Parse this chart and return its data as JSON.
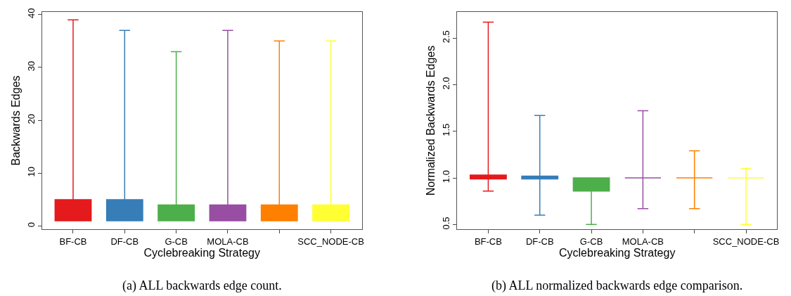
{
  "chart_data": [
    {
      "type": "box",
      "xlabel": "Cyclebreaking Strategy",
      "ylabel": "Backwards Edges",
      "categories": [
        "BF-CB",
        "DF-CB",
        "G-CB",
        "MOLA-CB",
        null,
        "SCC_NODE-CB"
      ],
      "colors": [
        "#e41a1c",
        "#377eb8",
        "#4daf4a",
        "#984ea3",
        "#ff7f00",
        "#ffff33"
      ],
      "boxes": [
        {
          "low": 1,
          "q1": 1,
          "median": 2,
          "q3": 5,
          "high": 39
        },
        {
          "low": 1,
          "q1": 1,
          "median": 2,
          "q3": 5,
          "high": 37
        },
        {
          "low": 1,
          "q1": 1,
          "median": 2,
          "q3": 4,
          "high": 33
        },
        {
          "low": 1,
          "q1": 1,
          "median": 2,
          "q3": 4,
          "high": 37
        },
        {
          "low": 1,
          "q1": 1,
          "median": 2,
          "q3": 4,
          "high": 35
        },
        {
          "low": 1,
          "q1": 1,
          "median": 2,
          "q3": 4,
          "high": 35
        }
      ],
      "ylim": [
        -0.6,
        40.5
      ],
      "yticks": [
        0,
        10,
        20,
        30,
        40
      ],
      "annotations": [
        "(a) ALL backwards edge count."
      ]
    },
    {
      "type": "box",
      "xlabel": "Cyclebreaking Strategy",
      "ylabel": "Normalized Backwards Edges",
      "categories": [
        "BF-CB",
        "DF-CB",
        "G-CB",
        "MOLA-CB",
        null,
        "SCC_NODE-CB"
      ],
      "colors": [
        "#e41a1c",
        "#377eb8",
        "#4daf4a",
        "#984ea3",
        "#ff7f00",
        "#ffff33"
      ],
      "boxes": [
        {
          "low": 0.86,
          "q1": 0.99,
          "median": 1.0,
          "q3": 1.03,
          "high": 2.67
        },
        {
          "low": 0.6,
          "q1": 0.99,
          "median": 1.0,
          "q3": 1.02,
          "high": 1.67
        },
        {
          "low": 0.5,
          "q1": 0.86,
          "median": 0.98,
          "q3": 1.0,
          "high": 1.0
        },
        {
          "low": 0.67,
          "q1": 1.0,
          "median": 1.0,
          "q3": 1.0,
          "high": 1.72
        },
        {
          "low": 0.67,
          "q1": 1.0,
          "median": 1.0,
          "q3": 1.0,
          "high": 1.29
        },
        {
          "low": 0.5,
          "q1": 1.0,
          "median": 1.0,
          "q3": 1.0,
          "high": 1.1
        }
      ],
      "ylim": [
        0.45,
        2.78
      ],
      "yticks": [
        0.5,
        {
          "value": 1,
          "label": "1.0"
        },
        1.5,
        {
          "value": 2,
          "label": "2.0"
        },
        2.5
      ],
      "annotations": [
        "(b) ALL normalized backwards edge comparison."
      ]
    }
  ]
}
